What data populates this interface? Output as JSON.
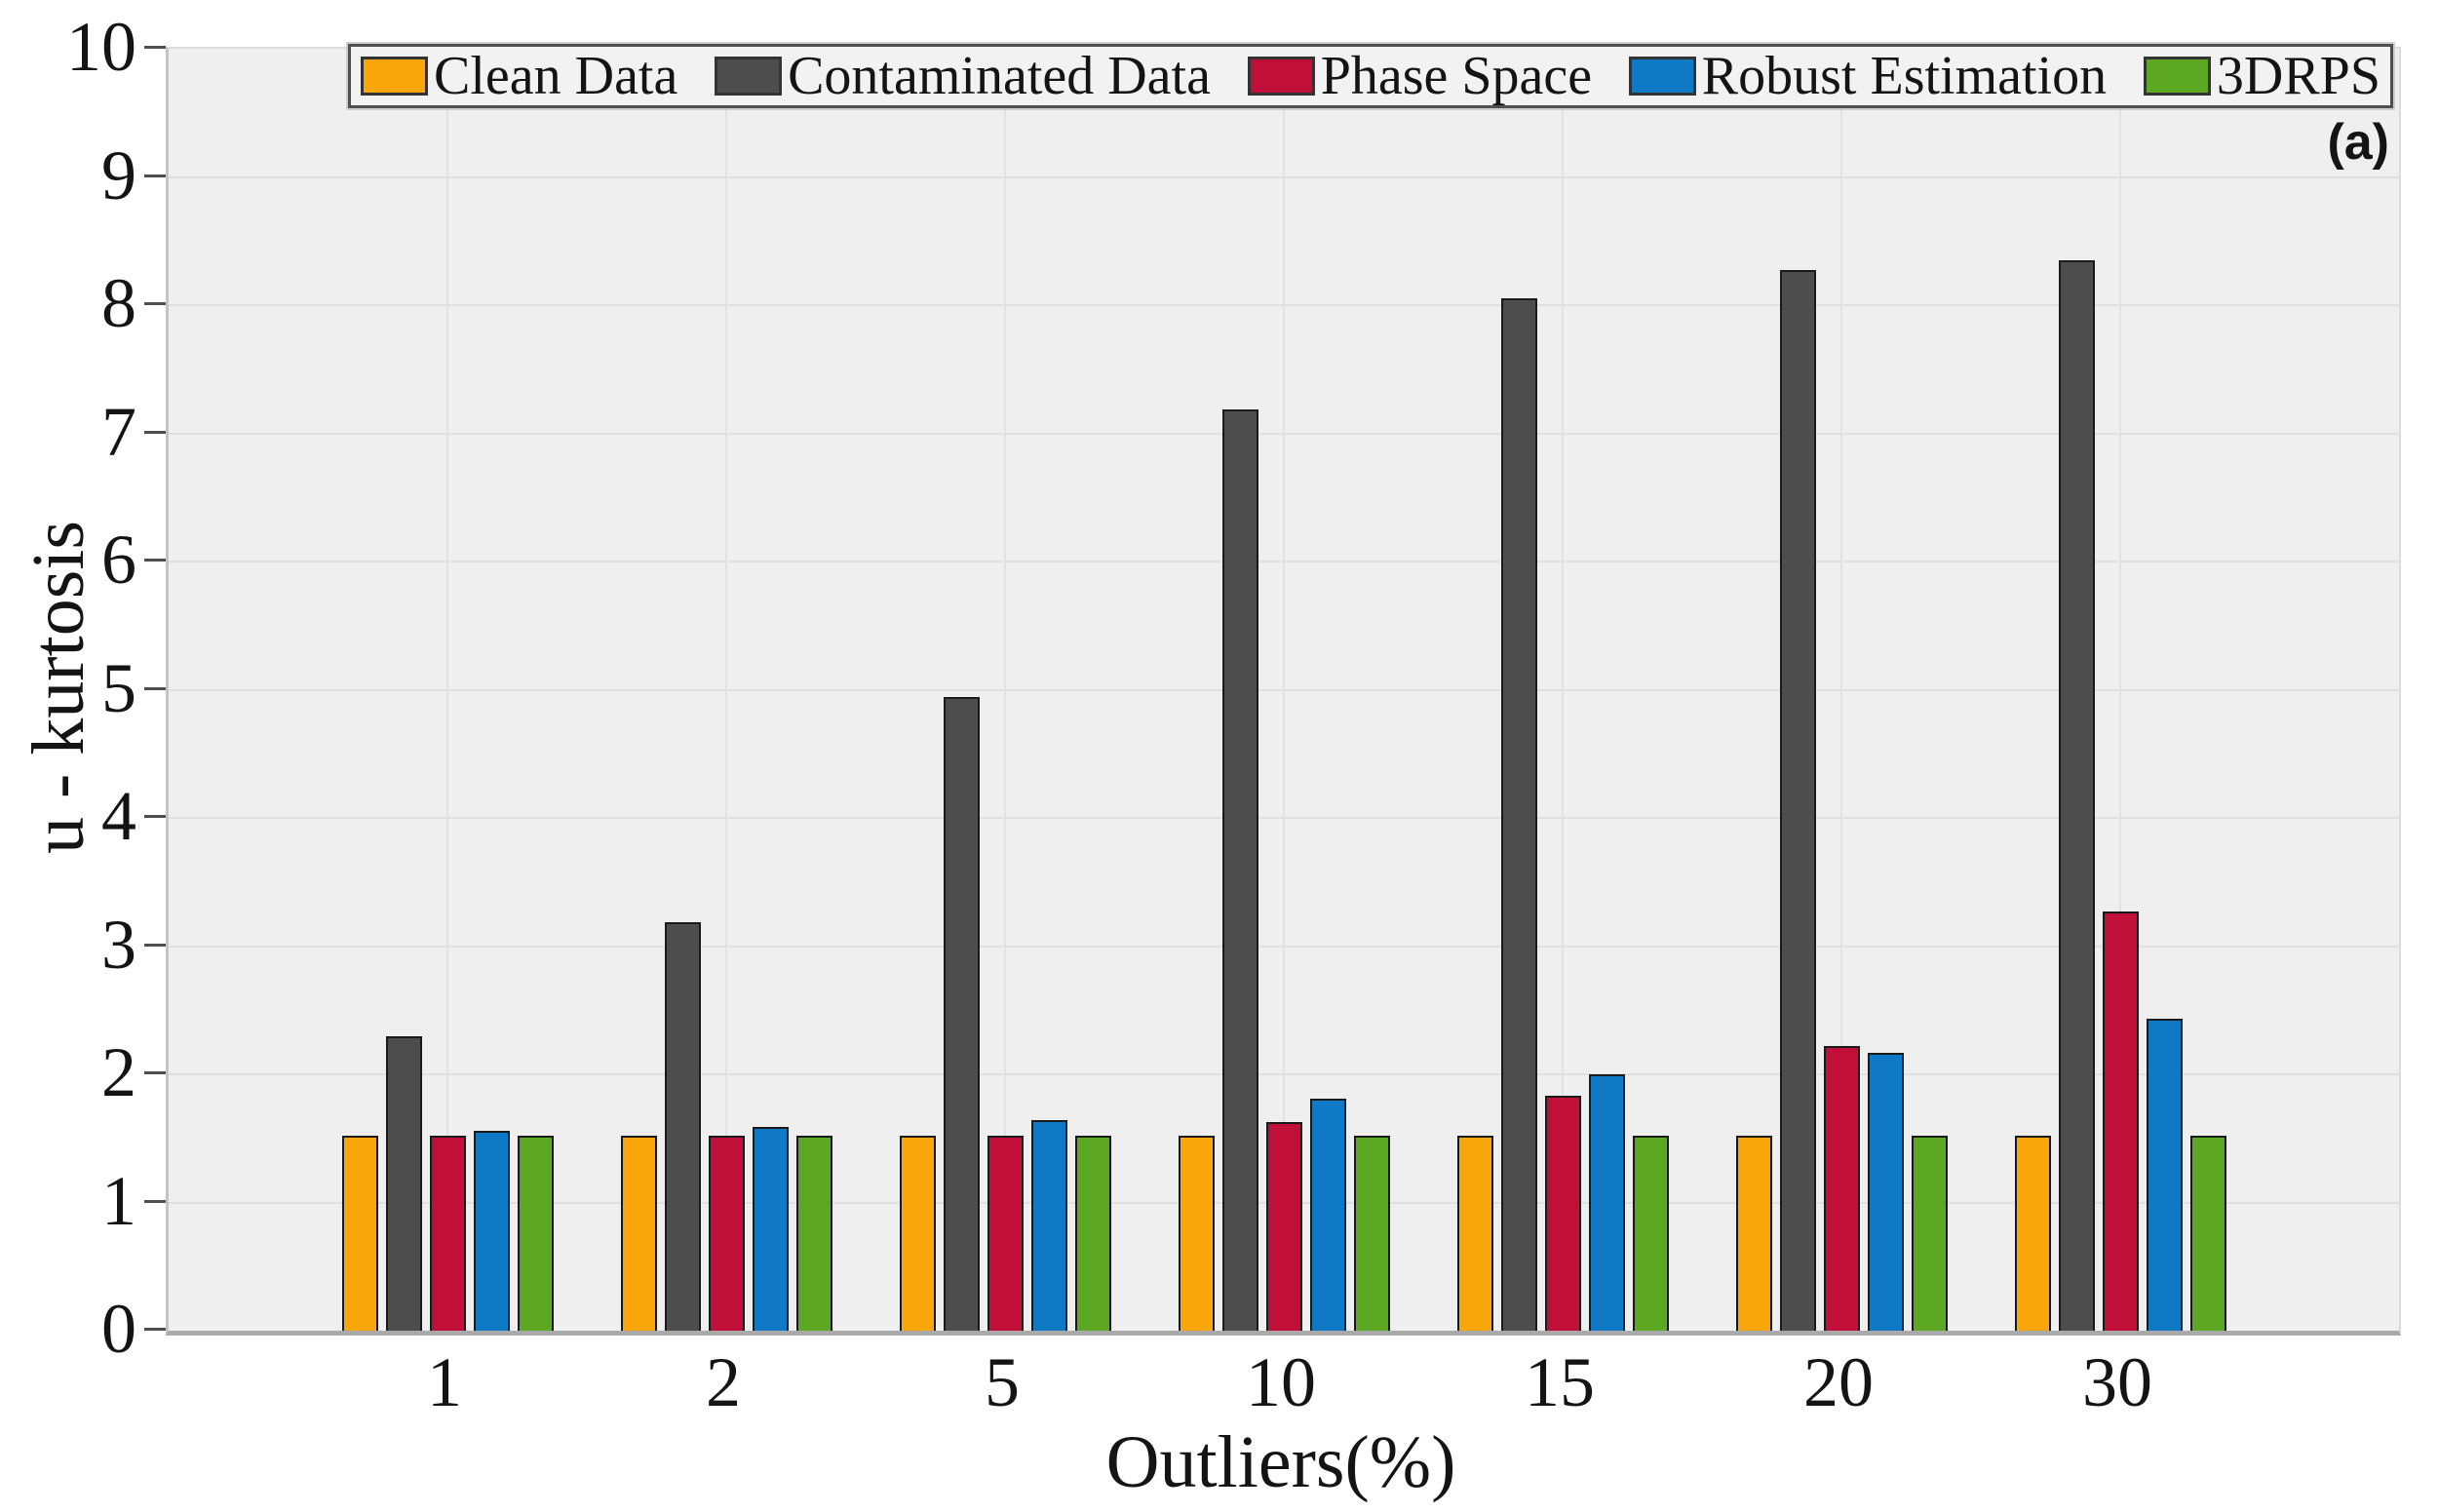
{
  "chart_data": {
    "type": "bar",
    "title": "",
    "xlabel": "Outliers(%)",
    "ylabel": "u - kurtosis",
    "annotation": "(a)",
    "legend_position": "top",
    "grid": true,
    "ylim": [
      0,
      10
    ],
    "yticks": [
      0,
      1,
      2,
      3,
      4,
      5,
      6,
      7,
      8,
      9,
      10
    ],
    "categories": [
      "1",
      "2",
      "5",
      "10",
      "15",
      "20",
      "30"
    ],
    "series": [
      {
        "name": "Clean Data",
        "color": "#F9A60A",
        "values": [
          1.52,
          1.52,
          1.52,
          1.52,
          1.52,
          1.52,
          1.52
        ]
      },
      {
        "name": "Contaminated Data",
        "color": "#4D4D4D",
        "values": [
          2.3,
          3.19,
          4.94,
          7.19,
          8.05,
          8.27,
          8.35
        ]
      },
      {
        "name": "Phase Space",
        "color": "#C0103A",
        "values": [
          1.52,
          1.52,
          1.52,
          1.63,
          1.83,
          2.22,
          3.27
        ]
      },
      {
        "name": "Robust Estimation",
        "color": "#0F79C6",
        "values": [
          1.56,
          1.59,
          1.64,
          1.81,
          2.0,
          2.17,
          2.43
        ]
      },
      {
        "name": "3DRPS",
        "color": "#5CA822",
        "values": [
          1.52,
          1.52,
          1.52,
          1.52,
          1.52,
          1.52,
          1.52
        ]
      }
    ],
    "colors": {
      "plot_background": "#EFEFEF",
      "figure_background": "#FFFFFF",
      "gridline": "#E0E0E0",
      "axis_line": "#A9A9A9",
      "bar_edge": "#1A1A1A",
      "text": "#141414"
    }
  }
}
